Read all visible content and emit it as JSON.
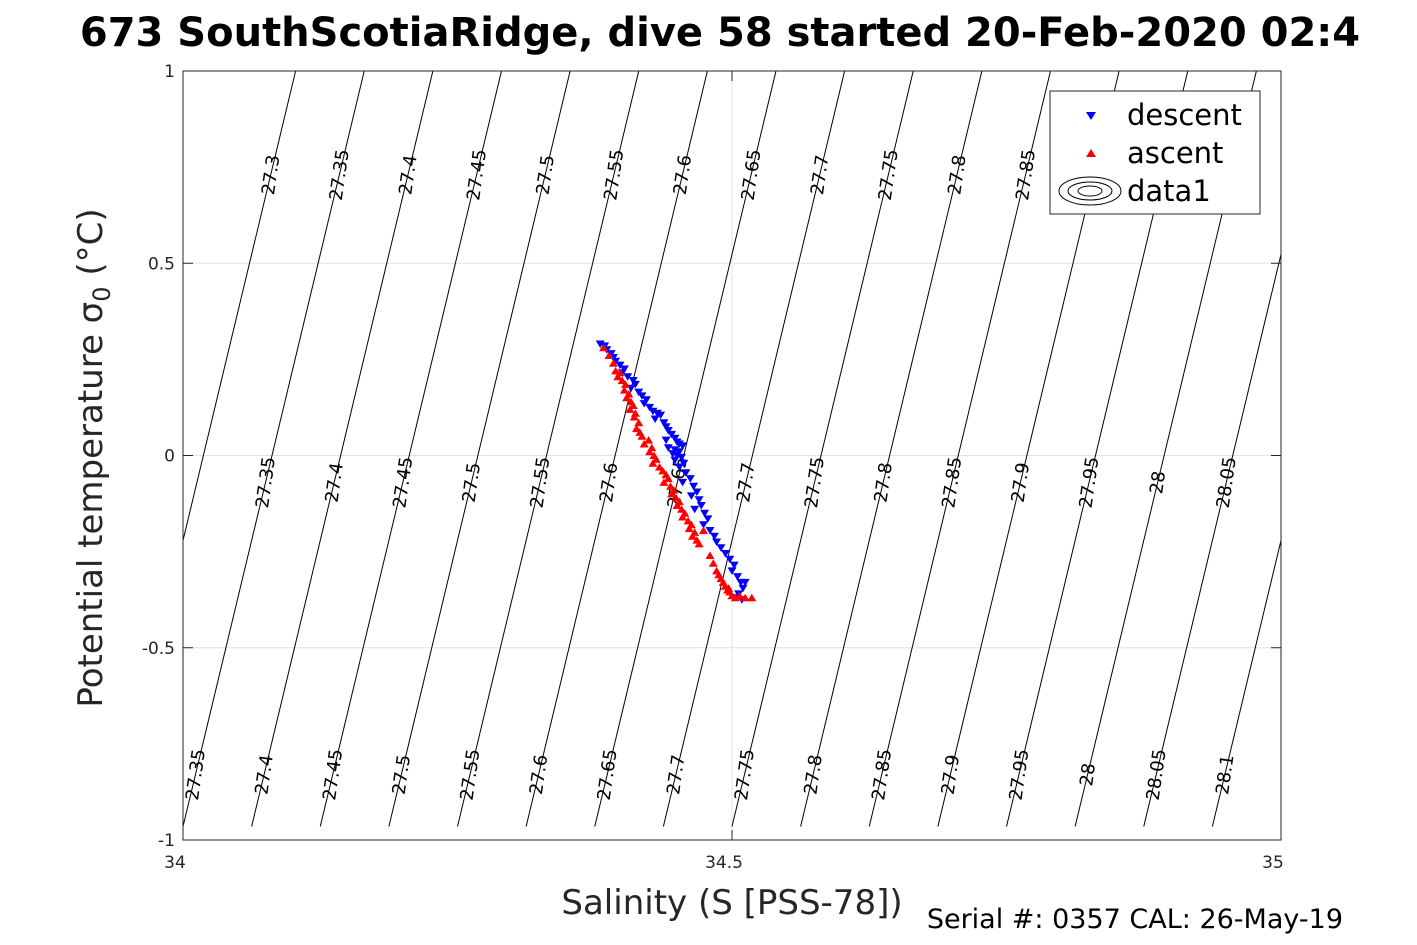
{
  "chart_data": {
    "type": "scatter",
    "title": "673 SouthScotiaRidge, dive 58 started 20-Feb-2020 02:4",
    "xlabel": "Salinity (S [PSS-78])",
    "ylabel_main": "Potential temperature ",
    "ylabel_sigma": "σ",
    "ylabel_sub": "0",
    "ylabel_unit": " (°C)",
    "xlim": [
      34,
      35
    ],
    "ylim": [
      -1,
      1
    ],
    "x_ticks": [
      34,
      34.5,
      35
    ],
    "x_tick_labels": [
      "34",
      "34.5",
      "35"
    ],
    "y_ticks": [
      -1,
      -0.5,
      0,
      0.5,
      1
    ],
    "y_tick_labels": [
      "-1",
      "-0.5",
      "0",
      "0.5",
      "1"
    ],
    "grid": true,
    "legend_position": "top-right",
    "legend": [
      "descent",
      "ascent",
      "data1"
    ],
    "series": [
      {
        "name": "descent",
        "marker": "triangle-down",
        "color": "#0000ff",
        "points": [
          [
            34.38,
            0.29
          ],
          [
            34.384,
            0.285
          ],
          [
            34.386,
            0.275
          ],
          [
            34.39,
            0.265
          ],
          [
            34.392,
            0.255
          ],
          [
            34.394,
            0.245
          ],
          [
            34.398,
            0.235
          ],
          [
            34.402,
            0.225
          ],
          [
            34.4,
            0.215
          ],
          [
            34.405,
            0.205
          ],
          [
            34.41,
            0.195
          ],
          [
            34.412,
            0.185
          ],
          [
            34.408,
            0.175
          ],
          [
            34.415,
            0.165
          ],
          [
            34.418,
            0.155
          ],
          [
            34.422,
            0.145
          ],
          [
            34.42,
            0.135
          ],
          [
            34.425,
            0.125
          ],
          [
            34.428,
            0.115
          ],
          [
            34.432,
            0.11
          ],
          [
            34.435,
            0.105
          ],
          [
            34.43,
            0.095
          ],
          [
            34.438,
            0.085
          ],
          [
            34.44,
            0.075
          ],
          [
            34.442,
            0.065
          ],
          [
            34.445,
            0.055
          ],
          [
            34.448,
            0.045
          ],
          [
            34.44,
            0.04
          ],
          [
            34.45,
            0.035
          ],
          [
            34.452,
            0.03
          ],
          [
            34.455,
            0.025
          ],
          [
            34.442,
            0.02
          ],
          [
            34.448,
            0.015
          ],
          [
            34.452,
            0.01
          ],
          [
            34.446,
            0.005
          ],
          [
            34.45,
            0.0
          ],
          [
            34.454,
            -0.005
          ],
          [
            34.448,
            -0.012
          ],
          [
            34.456,
            -0.02
          ],
          [
            34.452,
            -0.03
          ],
          [
            34.458,
            -0.045
          ],
          [
            34.462,
            -0.06
          ],
          [
            34.455,
            -0.07
          ],
          [
            34.465,
            -0.08
          ],
          [
            34.468,
            -0.095
          ],
          [
            34.463,
            -0.105
          ],
          [
            34.47,
            -0.115
          ],
          [
            34.472,
            -0.13
          ],
          [
            34.466,
            -0.14
          ],
          [
            34.475,
            -0.15
          ],
          [
            34.478,
            -0.165
          ],
          [
            34.474,
            -0.18
          ],
          [
            34.48,
            -0.195
          ],
          [
            34.484,
            -0.21
          ],
          [
            34.486,
            -0.225
          ],
          [
            34.49,
            -0.24
          ],
          [
            34.494,
            -0.255
          ],
          [
            34.498,
            -0.27
          ],
          [
            34.502,
            -0.285
          ],
          [
            34.5,
            -0.3
          ],
          [
            34.505,
            -0.315
          ],
          [
            34.508,
            -0.33
          ],
          [
            34.512,
            -0.33
          ],
          [
            34.51,
            -0.345
          ],
          [
            34.506,
            -0.36
          ],
          [
            34.503,
            -0.37
          ],
          [
            34.509,
            -0.375
          ]
        ]
      },
      {
        "name": "ascent",
        "marker": "triangle-up",
        "color": "#ff0000",
        "points": [
          [
            34.383,
            0.28
          ],
          [
            34.388,
            0.26
          ],
          [
            34.392,
            0.24
          ],
          [
            34.394,
            0.22
          ],
          [
            34.398,
            0.215
          ],
          [
            34.396,
            0.205
          ],
          [
            34.4,
            0.195
          ],
          [
            34.403,
            0.185
          ],
          [
            34.402,
            0.17
          ],
          [
            34.406,
            0.16
          ],
          [
            34.404,
            0.15
          ],
          [
            34.408,
            0.14
          ],
          [
            34.41,
            0.13
          ],
          [
            34.407,
            0.12
          ],
          [
            34.412,
            0.11
          ],
          [
            34.411,
            0.1
          ],
          [
            34.415,
            0.085
          ],
          [
            34.413,
            0.07
          ],
          [
            34.416,
            0.06
          ],
          [
            34.418,
            0.05
          ],
          [
            34.424,
            0.04
          ],
          [
            34.42,
            0.03
          ],
          [
            34.427,
            0.02
          ],
          [
            34.425,
            0.01
          ],
          [
            34.429,
            0.0
          ],
          [
            34.431,
            -0.01
          ],
          [
            34.428,
            -0.02
          ],
          [
            34.434,
            -0.03
          ],
          [
            34.437,
            -0.04
          ],
          [
            34.44,
            -0.05
          ],
          [
            34.442,
            -0.06
          ],
          [
            34.438,
            -0.07
          ],
          [
            34.444,
            -0.08
          ],
          [
            34.447,
            -0.09
          ],
          [
            34.445,
            -0.1
          ],
          [
            34.449,
            -0.11
          ],
          [
            34.452,
            -0.12
          ],
          [
            34.45,
            -0.13
          ],
          [
            34.454,
            -0.14
          ],
          [
            34.457,
            -0.15
          ],
          [
            34.455,
            -0.16
          ],
          [
            34.46,
            -0.17
          ],
          [
            34.463,
            -0.18
          ],
          [
            34.461,
            -0.19
          ],
          [
            34.466,
            -0.2
          ],
          [
            34.464,
            -0.21
          ],
          [
            34.468,
            -0.22
          ],
          [
            34.47,
            -0.23
          ],
          [
            34.474,
            -0.195
          ],
          [
            34.48,
            -0.26
          ],
          [
            34.483,
            -0.28
          ],
          [
            34.486,
            -0.3
          ],
          [
            34.488,
            -0.31
          ],
          [
            34.49,
            -0.32
          ],
          [
            34.492,
            -0.33
          ],
          [
            34.494,
            -0.34
          ],
          [
            34.496,
            -0.35
          ],
          [
            34.498,
            -0.355
          ],
          [
            34.5,
            -0.365
          ],
          [
            34.503,
            -0.37
          ],
          [
            34.507,
            -0.365
          ],
          [
            34.512,
            -0.37
          ],
          [
            34.518,
            -0.37
          ],
          [
            34.497,
            -0.345
          ]
        ]
      }
    ],
    "density_contours": {
      "levels": [
        27.3,
        27.35,
        27.4,
        27.45,
        27.5,
        27.55,
        27.6,
        27.65,
        27.7,
        27.75,
        27.8,
        27.85,
        27.9,
        27.95,
        28,
        28.05,
        28.1
      ],
      "level_labels": [
        "27.3",
        "27.35",
        "27.4",
        "27.45",
        "27.5",
        "27.55",
        "27.6",
        "27.65",
        "27.7",
        "27.75",
        "27.8",
        "27.85",
        "27.9",
        "27.95",
        "28",
        "28.05",
        "28.1"
      ],
      "top_row_labels": [
        "27.3",
        "27.35",
        "27.4",
        "27.45",
        "27.5",
        "27.55",
        "27.6",
        "27.65",
        "27.7",
        "27.75",
        "27.8",
        "27.85",
        "27.9",
        "28.05"
      ],
      "middle_row_labels": [
        "27.35",
        "27.4",
        "27.45",
        "27.5",
        "27.55",
        "27.6",
        "27.65",
        "27.7",
        "27.75",
        "27.8",
        "27.85",
        "27.9",
        "27.95",
        "28",
        "28.05",
        "28.1"
      ],
      "bottom_row_labels": [
        "27.35",
        "27.4",
        "27.45",
        "27.5",
        "27.55",
        "27.6",
        "27.65",
        "27.7",
        "27.75",
        "27.8",
        "27.85",
        "27.9",
        "27.95",
        "28",
        "28.05",
        "28.1"
      ]
    },
    "footer": "Serial #: 0357  CAL: 26-May-19"
  }
}
